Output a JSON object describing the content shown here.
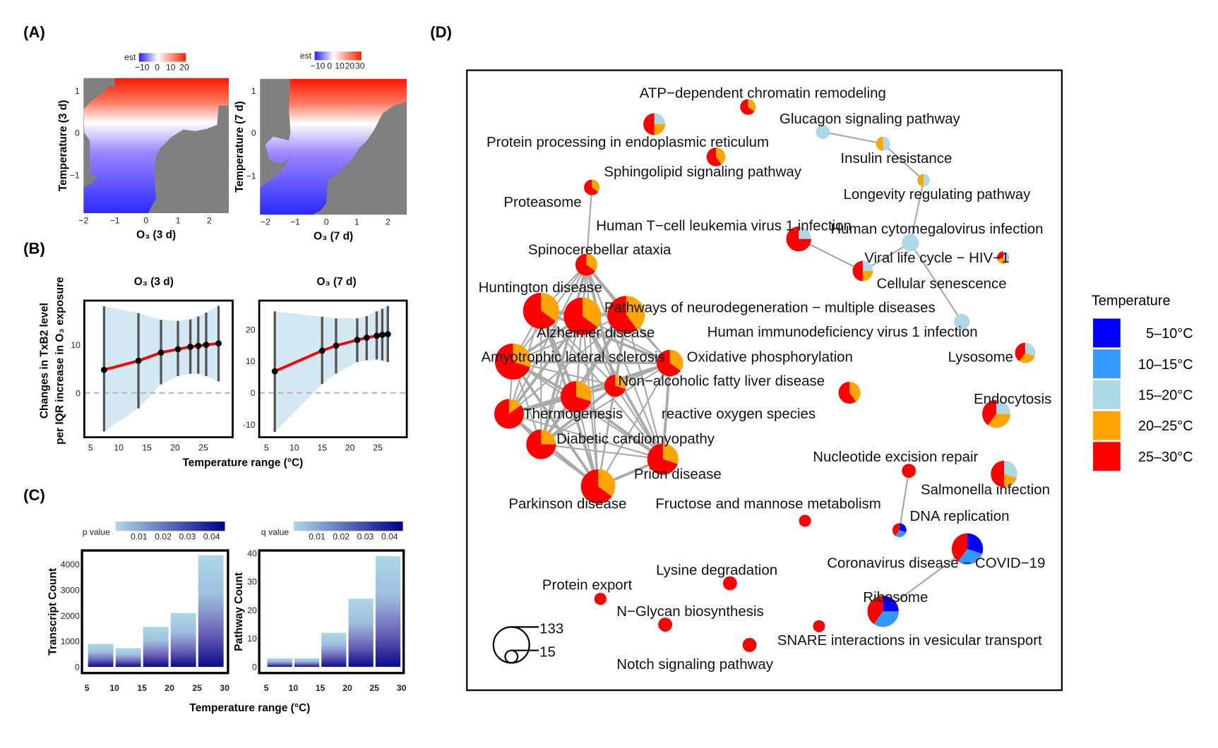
{
  "panel_labels": {
    "a": "(A)",
    "b": "(B)",
    "c": "(C)",
    "d": "(D)"
  },
  "shared": {
    "b_ylabel_1": "Changes in TxB2 level",
    "b_ylabel_2": "per IQR increase in O₃ exposure",
    "b_xlabel": "Temperature range (°C)",
    "c_xlabel": "Temperature range (°C)"
  },
  "chart_data": [
    {
      "id": "A1",
      "type": "heatmap",
      "legend_title": "est",
      "legend_ticks": [
        "−10",
        "0",
        "10",
        "20"
      ],
      "xlabel": "O₃ (3 d)",
      "ylabel": "Temperature (3 d)",
      "xticks": [
        "−2",
        "−1",
        "0",
        "1",
        "2"
      ],
      "yticks": [
        "−1",
        "0",
        "1"
      ],
      "colors": {
        "low": "#0000ff",
        "mid": "#ffffff",
        "high": "#ff0000",
        "na": "#808080"
      }
    },
    {
      "id": "A2",
      "type": "heatmap",
      "legend_title": "est",
      "legend_ticks": [
        "−10",
        "0",
        "10",
        "20",
        "30"
      ],
      "xlabel": "O₃ (7 d)",
      "ylabel": "Temperature (7 d)",
      "xticks": [
        "−2",
        "−1",
        "0",
        "1",
        "2"
      ],
      "yticks": [
        "−1",
        "0",
        "1"
      ],
      "colors": {
        "low": "#0000ff",
        "mid": "#ffffff",
        "high": "#ff0000",
        "na": "#808080"
      }
    },
    {
      "id": "B1",
      "type": "line",
      "title": "O₃ (3 d)",
      "x": [
        7.4,
        13.5,
        17.5,
        20.5,
        22.7,
        24.1,
        25.5,
        27.7
      ],
      "y": [
        4.8,
        6.7,
        8.4,
        9.1,
        9.6,
        9.8,
        10.0,
        10.3
      ],
      "ci_low": [
        -8.0,
        -3.2,
        1.8,
        3.5,
        4.0,
        4.0,
        3.5,
        2.4
      ],
      "ci_high": [
        18.0,
        16.6,
        15.2,
        15.0,
        15.3,
        15.9,
        16.7,
        18.1
      ],
      "xticks": [
        5,
        10,
        15,
        20,
        25
      ],
      "yticks": [
        0,
        10
      ],
      "xlim": [
        3.9,
        30.2
      ],
      "ylim": [
        -9.2,
        19.2
      ],
      "colors": {
        "line": "#ff0000",
        "band": "#d3e8f2",
        "errorbar": "#555555"
      }
    },
    {
      "id": "B2",
      "type": "line",
      "title": "O₃ (7 d)",
      "x": [
        6.5,
        15.0,
        17.5,
        21.3,
        23.0,
        24.8,
        25.8,
        26.8
      ],
      "y": [
        6.8,
        13.3,
        14.9,
        16.7,
        17.4,
        18.0,
        18.3,
        18.5
      ],
      "ci_low": [
        -12.3,
        2.8,
        6.1,
        9.7,
        10.3,
        10.5,
        10.2,
        9.7
      ],
      "ci_high": [
        25.7,
        24.0,
        23.5,
        23.5,
        24.2,
        25.7,
        26.5,
        27.4
      ],
      "xticks": [
        5,
        10,
        15,
        20,
        25
      ],
      "yticks": [
        -10,
        0,
        10,
        20
      ],
      "xlim": [
        3.7,
        30.2
      ],
      "ylim": [
        -14,
        29.1
      ],
      "colors": {
        "line": "#ff0000",
        "band": "#d3e8f2",
        "errorbar": "#555555"
      }
    },
    {
      "id": "C1",
      "type": "bar",
      "categories": [
        "5–10",
        "10–15",
        "15–20",
        "20–25",
        "25–30"
      ],
      "x": [
        7.5,
        12.5,
        17.5,
        22.5,
        27.5
      ],
      "values": [
        900,
        730,
        1560,
        2100,
        4350
      ],
      "ylabel": "Transcript Count",
      "legend_title": "p value",
      "legend_ticks": [
        "0.01",
        "0.02",
        "0.03",
        "0.04"
      ],
      "xticks": [
        5,
        10,
        15,
        20,
        25,
        30
      ],
      "yticks": [
        0,
        1000,
        2000,
        3000,
        4000
      ],
      "xlim": [
        4.1,
        30.6
      ],
      "ylim": [
        -240,
        4540
      ],
      "colors": {
        "low": "#add8e6",
        "high": "#00008b"
      }
    },
    {
      "id": "C2",
      "type": "bar",
      "categories": [
        "5–10",
        "10–15",
        "15–20",
        "20–25",
        "25–30"
      ],
      "x": [
        7.5,
        12.5,
        17.5,
        22.5,
        27.5
      ],
      "values": [
        3,
        3,
        12,
        24,
        39
      ],
      "ylabel": "Pathway Count",
      "legend_title": "q value",
      "legend_ticks": [
        "0.01",
        "0.02",
        "0.03",
        "0.04"
      ],
      "xticks": [
        5,
        10,
        15,
        20,
        25,
        30
      ],
      "yticks": [
        0,
        10,
        20,
        30,
        40
      ],
      "xlim": [
        3.7,
        30.4
      ],
      "ylim": [
        -2.2,
        41
      ],
      "colors": {
        "low": "#add8e6",
        "high": "#00008b"
      }
    },
    {
      "id": "D",
      "type": "network",
      "legend_title": "Temperature",
      "legend": [
        {
          "label": "5–10°C",
          "color": "#0000ff"
        },
        {
          "label": "10–15°C",
          "color": "#3399ff"
        },
        {
          "label": "15–20°C",
          "color": "#add8e6"
        },
        {
          "label": "20–25°C",
          "color": "#ffa500"
        },
        {
          "label": "25–30°C",
          "color": "#ff0000"
        }
      ],
      "size_legend": [
        "133",
        "15"
      ],
      "nodes": [
        {
          "label": "ATP−dependent chromatin remodeling",
          "size": 25,
          "fractions": [
            0,
            0,
            0,
            0.35,
            0.65
          ]
        },
        {
          "label": "Protein processing in endoplasmic reticulum",
          "size": 49,
          "fractions": [
            0,
            0,
            0.25,
            0.25,
            0.5
          ]
        },
        {
          "label": "Glucagon signaling pathway",
          "size": 20,
          "fractions": [
            0,
            0,
            1,
            0,
            0
          ]
        },
        {
          "label": "Insulin resistance",
          "size": 20,
          "fractions": [
            0,
            0,
            0.5,
            0.5,
            0
          ]
        },
        {
          "label": "Sphingolipid signaling pathway",
          "size": 36,
          "fractions": [
            0,
            0,
            0,
            0.4,
            0.6
          ]
        },
        {
          "label": "Longevity regulating pathway",
          "size": 16,
          "fractions": [
            0,
            0,
            0.5,
            0.5,
            0
          ]
        },
        {
          "label": "Proteasome",
          "size": 25,
          "fractions": [
            0,
            0,
            0,
            0.35,
            0.65
          ]
        },
        {
          "label": "Human T−cell leukemia virus 1 infection",
          "size": 64,
          "fractions": [
            0,
            0,
            0.25,
            0,
            0.75
          ]
        },
        {
          "label": "Human cytomegalovirus infection",
          "size": 30,
          "fractions": [
            0,
            0,
            1,
            0,
            0
          ]
        },
        {
          "label": "Spinocerebellar ataxia",
          "size": 49,
          "fractions": [
            0,
            0,
            0,
            0.35,
            0.65
          ]
        },
        {
          "label": "Viral life cycle − HIV−1",
          "size": 16,
          "fractions": [
            0,
            0,
            0.4,
            0.3,
            0.3
          ]
        },
        {
          "label": "Cellular senescence",
          "size": 42,
          "fractions": [
            0,
            0,
            0.25,
            0.25,
            0.5
          ]
        },
        {
          "label": "Huntington disease",
          "size": 133,
          "fractions": [
            0,
            0,
            0,
            0.35,
            0.65
          ]
        },
        {
          "label": "Alzheimer disease",
          "size": 144,
          "fractions": [
            0,
            0,
            0,
            0.35,
            0.65
          ]
        },
        {
          "label": "Pathways of neurodegeneration − multiple diseases",
          "size": 144,
          "fractions": [
            0,
            0,
            0,
            0.4,
            0.6
          ]
        },
        {
          "label": "Human immunodeficiency virus 1 infection",
          "size": 25,
          "fractions": [
            0,
            0,
            1,
            0,
            0
          ]
        },
        {
          "label": "Amyotrophic lateral sclerosis",
          "size": 133,
          "fractions": [
            0,
            0,
            0,
            0.3,
            0.7
          ]
        },
        {
          "label": "Oxidative phosphorylation",
          "size": 72,
          "fractions": [
            0,
            0,
            0,
            0.35,
            0.65
          ]
        },
        {
          "label": "Lysosome",
          "size": 42,
          "fractions": [
            0,
            0,
            0.3,
            0.3,
            0.4
          ]
        },
        {
          "label": "Non−alcoholic fatty liver disease",
          "size": 49,
          "fractions": [
            0,
            0,
            0,
            0.3,
            0.7
          ]
        },
        {
          "label": "Thermogenesis",
          "size": 90,
          "fractions": [
            0,
            0,
            0,
            0.15,
            0.85
          ]
        },
        {
          "label": "reactive oxygen species",
          "size": 100,
          "fractions": [
            0,
            0,
            0,
            0.3,
            0.7
          ]
        },
        {
          "label": "",
          "size": 49,
          "fractions": [
            0,
            0,
            0,
            0.4,
            0.6
          ]
        },
        {
          "label": "Endocytosis",
          "size": 81,
          "fractions": [
            0,
            0,
            0.25,
            0.35,
            0.4
          ]
        },
        {
          "label": "Diabetic cardiomyopathy",
          "size": 90,
          "fractions": [
            0,
            0,
            0,
            0.25,
            0.75
          ]
        },
        {
          "label": "Nucleotide excision repair",
          "size": 20,
          "fractions": [
            0,
            0,
            0,
            0,
            1
          ]
        },
        {
          "label": "Prion disease",
          "size": 100,
          "fractions": [
            0,
            0,
            0,
            0.3,
            0.7
          ]
        },
        {
          "label": "Salmonella infection",
          "size": 72,
          "fractions": [
            0,
            0,
            0.3,
            0.2,
            0.5
          ]
        },
        {
          "label": "Parkinson disease",
          "size": 121,
          "fractions": [
            0,
            0,
            0,
            0.35,
            0.65
          ]
        },
        {
          "label": "Fructose and mannose metabolism",
          "size": 15,
          "fractions": [
            0,
            0,
            0,
            0,
            1
          ]
        },
        {
          "label": "DNA replication",
          "size": 20,
          "fractions": [
            0.3,
            0.3,
            0,
            0,
            0.4
          ]
        },
        {
          "label": "Coronavirus disease − COVID−19",
          "size": 100,
          "fractions": [
            0.3,
            0.3,
            0,
            0,
            0.4
          ]
        },
        {
          "label": "Lysine degradation",
          "size": 20,
          "fractions": [
            0,
            0,
            0,
            0,
            1
          ]
        },
        {
          "label": "Protein export",
          "size": 15,
          "fractions": [
            0,
            0,
            0,
            0,
            1
          ]
        },
        {
          "label": "Ribosome",
          "size": 100,
          "fractions": [
            0.25,
            0.35,
            0,
            0,
            0.4
          ]
        },
        {
          "label": "N−Glycan biosynthesis",
          "size": 20,
          "fractions": [
            0,
            0,
            0,
            0,
            1
          ]
        },
        {
          "label": "SNARE interactions in vesicular transport",
          "size": 15,
          "fractions": [
            0,
            0,
            0,
            0,
            1
          ]
        },
        {
          "label": "Notch signaling pathway",
          "size": 20,
          "fractions": [
            0,
            0,
            0,
            0,
            1
          ]
        }
      ],
      "clique": [
        9,
        12,
        13,
        14,
        16,
        17,
        19,
        20,
        21,
        24,
        26,
        28
      ],
      "edges": [
        [
          6,
          9
        ],
        [
          2,
          3
        ],
        [
          3,
          5
        ],
        [
          5,
          8
        ],
        [
          8,
          11
        ],
        [
          8,
          15
        ],
        [
          7,
          11
        ],
        [
          25,
          30
        ],
        [
          31,
          34
        ]
      ],
      "edge_color": "#aaaaaa"
    }
  ]
}
